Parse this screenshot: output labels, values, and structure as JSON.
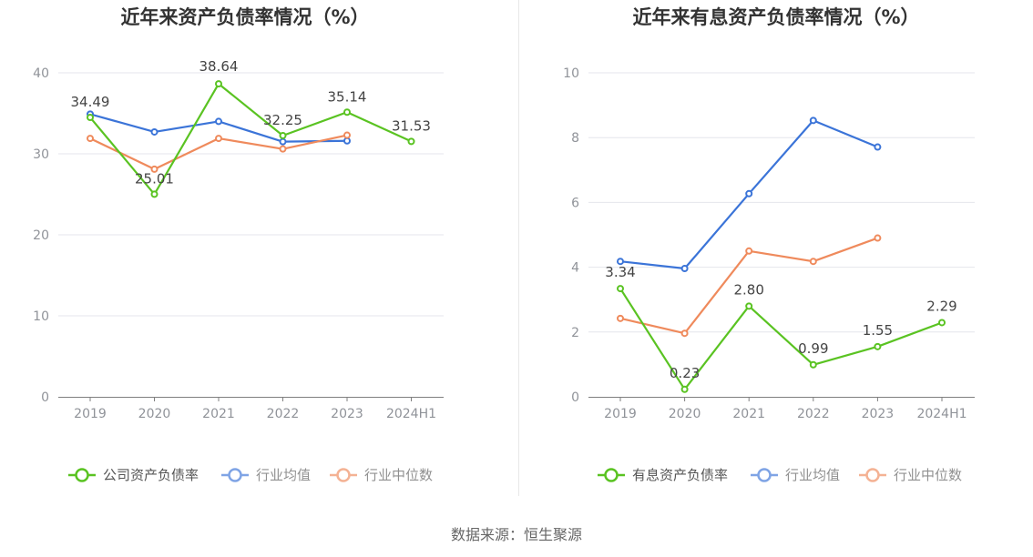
{
  "colors": {
    "company": "#5ac322",
    "avg": "#3b74d8",
    "median": "#ef8a5c",
    "grid": "#e4e6ec",
    "axis": "#7f7f7f",
    "tick": "#909399",
    "title": "#333333",
    "label": "#444444",
    "divider": "#e8e8e8"
  },
  "source": "数据来源：恒生聚源",
  "chart_data": [
    {
      "type": "line",
      "title": "近年来资产负债率情况（%）",
      "categories": [
        "2019",
        "2020",
        "2021",
        "2022",
        "2023",
        "2024H1"
      ],
      "ylim": [
        0,
        40
      ],
      "yticks": [
        0,
        10,
        20,
        30,
        40
      ],
      "grid": true,
      "legend_position": "bottom",
      "series": [
        {
          "name": "公司资产负债率",
          "color_key": "company",
          "values": [
            34.49,
            25.01,
            38.64,
            32.25,
            35.14,
            31.53
          ],
          "labels": [
            "34.49",
            "25.01",
            "38.64",
            "32.25",
            "35.14",
            "31.53"
          ]
        },
        {
          "name": "行业均值",
          "color_key": "avg",
          "values": [
            34.9,
            32.7,
            34.0,
            31.5,
            31.6,
            null
          ]
        },
        {
          "name": "行业中位数",
          "color_key": "median",
          "values": [
            31.9,
            28.1,
            31.9,
            30.6,
            32.3,
            null
          ]
        }
      ]
    },
    {
      "type": "line",
      "title": "近年来有息资产负债率情况（%）",
      "categories": [
        "2019",
        "2020",
        "2021",
        "2022",
        "2023",
        "2024H1"
      ],
      "ylim": [
        0,
        10
      ],
      "yticks": [
        0,
        2,
        4,
        6,
        8,
        10
      ],
      "grid": true,
      "legend_position": "bottom",
      "series": [
        {
          "name": "有息资产负债率",
          "color_key": "company",
          "values": [
            3.34,
            0.23,
            2.8,
            0.99,
            1.55,
            2.29
          ],
          "labels": [
            "3.34",
            "0.23",
            "2.80",
            "0.99",
            "1.55",
            "2.29"
          ]
        },
        {
          "name": "行业均值",
          "color_key": "avg",
          "values": [
            4.18,
            3.96,
            6.27,
            8.53,
            7.71,
            null
          ]
        },
        {
          "name": "行业中位数",
          "color_key": "median",
          "values": [
            2.42,
            1.96,
            4.5,
            4.18,
            4.9,
            null
          ]
        }
      ]
    }
  ]
}
